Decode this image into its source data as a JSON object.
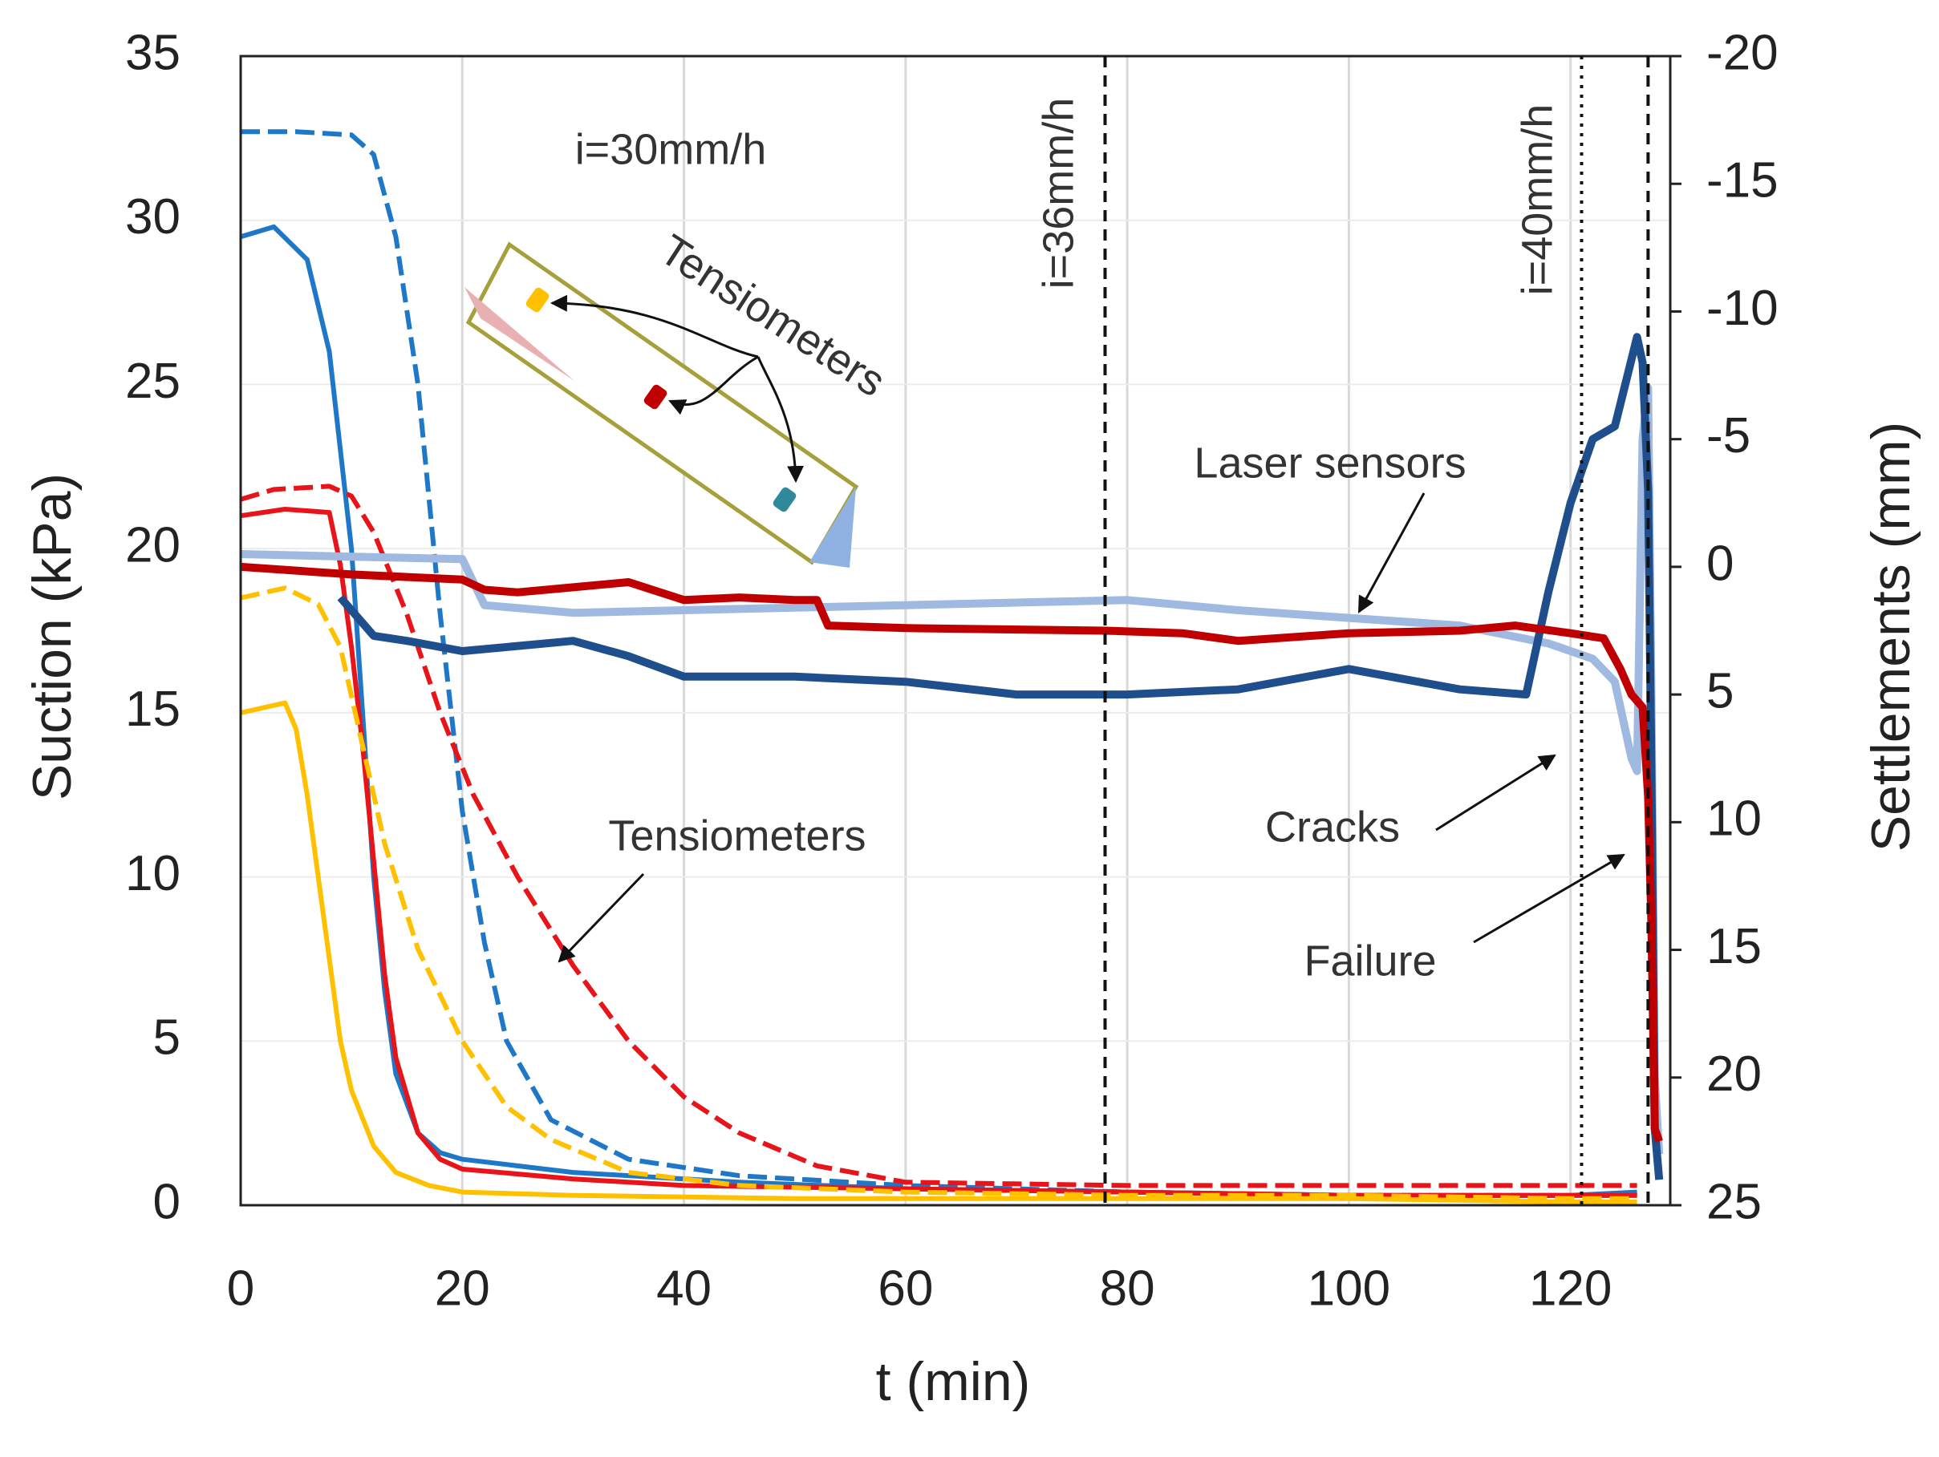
{
  "chart_data": {
    "type": "line",
    "xlabel": "t (min)",
    "ylabel": "Suction (kPa)",
    "y2label": "Settlements (mm)",
    "xlim": [
      0,
      129
    ],
    "xticks": [
      0,
      20,
      40,
      60,
      80,
      100,
      120
    ],
    "ylim": [
      0,
      35
    ],
    "yticks": [
      0,
      5,
      10,
      15,
      20,
      25,
      30,
      35
    ],
    "y2lim": [
      25,
      -20
    ],
    "y2ticks": [
      -20,
      -15,
      -10,
      -5,
      0,
      5,
      10,
      15,
      20,
      25
    ],
    "grid": true,
    "vlines": [
      {
        "x": 78,
        "style": "dashed"
      },
      {
        "x": 121,
        "style": "dotted"
      },
      {
        "x": 127,
        "style": "dashed"
      }
    ],
    "annotations": [
      "i=30mm/h",
      "i=36mm/h",
      "i=40mm/h",
      "Tensiometers",
      "Laser sensors",
      "Tensiometers",
      "Cracks",
      "Failure"
    ],
    "series": [
      {
        "color": "#1f77c8",
        "dashed": true,
        "axis": "y",
        "x": [
          0,
          5,
          10,
          12,
          14,
          16,
          18,
          20,
          22,
          24,
          28,
          35,
          45,
          60,
          80,
          100,
          120,
          126
        ],
        "values": [
          32.7,
          32.7,
          32.6,
          32.0,
          29.5,
          25,
          18,
          12,
          8,
          5,
          2.6,
          1.4,
          0.9,
          0.6,
          0.4,
          0.3,
          0.3,
          0.3
        ]
      },
      {
        "color": "#1f77c8",
        "dashed": false,
        "axis": "y",
        "x": [
          0,
          3,
          6,
          8,
          10,
          11,
          12,
          13,
          14,
          16,
          18,
          20,
          30,
          45,
          60,
          80,
          100,
          120,
          126
        ],
        "values": [
          29.5,
          29.8,
          28.8,
          26,
          20,
          15,
          10,
          6.5,
          4,
          2.2,
          1.6,
          1.4,
          1.0,
          0.7,
          0.5,
          0.4,
          0.3,
          0.3,
          0.4
        ]
      },
      {
        "color": "#e8141a",
        "dashed": true,
        "axis": "y",
        "x": [
          0,
          3,
          8,
          10,
          12,
          15,
          18,
          21,
          25,
          30,
          35,
          40,
          45,
          52,
          60,
          80,
          100,
          120,
          126
        ],
        "values": [
          21.5,
          21.8,
          21.9,
          21.6,
          20.5,
          18,
          15,
          12.5,
          10,
          7.3,
          5,
          3.3,
          2.2,
          1.2,
          0.7,
          0.6,
          0.6,
          0.6,
          0.6
        ]
      },
      {
        "color": "#e8141a",
        "dashed": false,
        "axis": "y",
        "x": [
          0,
          4,
          8,
          9,
          10,
          11,
          12,
          13,
          14,
          16,
          18,
          20,
          30,
          40,
          60,
          80,
          100,
          120,
          126
        ],
        "values": [
          21,
          21.2,
          21.1,
          19.5,
          17,
          14,
          10.5,
          7,
          4.5,
          2.2,
          1.4,
          1.1,
          0.8,
          0.6,
          0.5,
          0.4,
          0.3,
          0.3,
          0.3
        ]
      },
      {
        "color": "#ffc000",
        "dashed": true,
        "axis": "y",
        "x": [
          0,
          4,
          7,
          9,
          11,
          13,
          16,
          20,
          24,
          28,
          35,
          45,
          60,
          80,
          100,
          120,
          126
        ],
        "values": [
          18.5,
          18.8,
          18.3,
          17,
          14,
          11,
          7.8,
          5,
          3,
          2,
          1.0,
          0.6,
          0.4,
          0.3,
          0.3,
          0.2,
          0.2
        ]
      },
      {
        "color": "#ffc000",
        "dashed": false,
        "axis": "y",
        "x": [
          0,
          4,
          5,
          6,
          7,
          8,
          9,
          10,
          12,
          14,
          17,
          20,
          30,
          50,
          80,
          100,
          120,
          126
        ],
        "values": [
          15,
          15.3,
          14.5,
          12.5,
          10,
          7.5,
          5,
          3.5,
          1.8,
          1.0,
          0.6,
          0.4,
          0.3,
          0.2,
          0.2,
          0.2,
          0.1,
          0.1
        ]
      },
      {
        "color": "#9fb9e0",
        "dashed": false,
        "axis": "y2",
        "x": [
          0,
          10,
          20,
          22,
          30,
          40,
          50,
          60,
          70,
          80,
          90,
          100,
          110,
          118,
          122,
          124,
          125.5,
          126,
          126.5,
          127,
          127.3,
          127.6,
          128
        ],
        "values": [
          -0.5,
          -0.4,
          -0.3,
          1.5,
          1.8,
          1.7,
          1.6,
          1.5,
          1.4,
          1.3,
          1.7,
          2.0,
          2.3,
          3.0,
          3.6,
          4.5,
          7.5,
          8.0,
          -5,
          -7,
          5,
          20,
          23
        ]
      },
      {
        "color": "#1f4e8c",
        "dashed": false,
        "axis": "y2",
        "x": [
          9,
          12,
          15,
          20,
          25,
          30,
          35,
          40,
          50,
          60,
          70,
          80,
          90,
          100,
          110,
          116,
          118,
          120,
          122,
          124,
          126,
          126.5,
          127,
          127.3,
          127.6,
          128
        ],
        "values": [
          1.2,
          2.7,
          2.9,
          3.3,
          3.1,
          2.9,
          3.5,
          4.3,
          4.3,
          4.5,
          5.0,
          5.0,
          4.8,
          4.0,
          4.8,
          5.0,
          1.0,
          -2.5,
          -5.0,
          -5.5,
          -9.0,
          -8.0,
          -3,
          8,
          22,
          24
        ]
      },
      {
        "color": "#c00000",
        "dashed": false,
        "axis": "y2",
        "x": [
          0,
          10,
          20,
          22,
          25,
          30,
          35,
          40,
          45,
          50,
          52,
          53,
          60,
          78,
          85,
          90,
          100,
          110,
          115,
          120,
          123,
          124.5,
          125.5,
          126.5,
          127,
          127.3,
          127.6,
          128
        ],
        "values": [
          0,
          0.3,
          0.5,
          0.9,
          1.0,
          0.8,
          0.6,
          1.3,
          1.2,
          1.3,
          1.3,
          2.3,
          2.4,
          2.5,
          2.6,
          2.9,
          2.6,
          2.5,
          2.3,
          2.6,
          2.8,
          4.0,
          5.0,
          5.5,
          9,
          14,
          22,
          22.5
        ]
      }
    ]
  }
}
